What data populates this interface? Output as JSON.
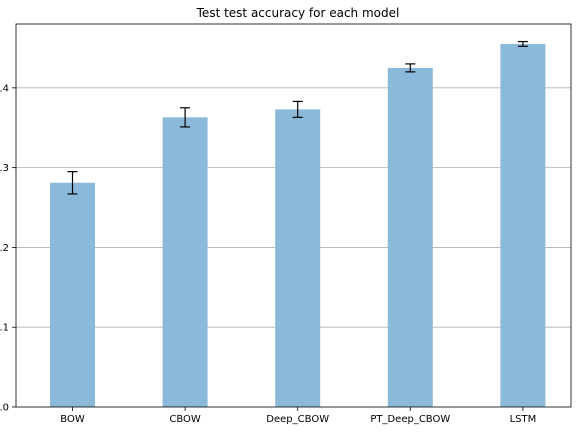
{
  "chart_data": {
    "type": "bar",
    "title": "Test test accuracy for each model",
    "xlabel": "",
    "ylabel": "",
    "categories": [
      "BOW",
      "CBOW",
      "Deep_CBOW",
      "PT_Deep_CBOW",
      "LSTM"
    ],
    "values": [
      0.281,
      0.363,
      0.373,
      0.425,
      0.455
    ],
    "errors": [
      0.014,
      0.012,
      0.01,
      0.005,
      0.003
    ],
    "ylim": [
      0,
      0.48
    ],
    "yticks": [
      0.0,
      0.1,
      0.2,
      0.3,
      0.4
    ],
    "grid": "y",
    "legend": "none",
    "colors": {
      "bar": "#8bb9d9",
      "grid": "#b0b0b0",
      "axis": "#000000",
      "error": "#000000"
    }
  }
}
